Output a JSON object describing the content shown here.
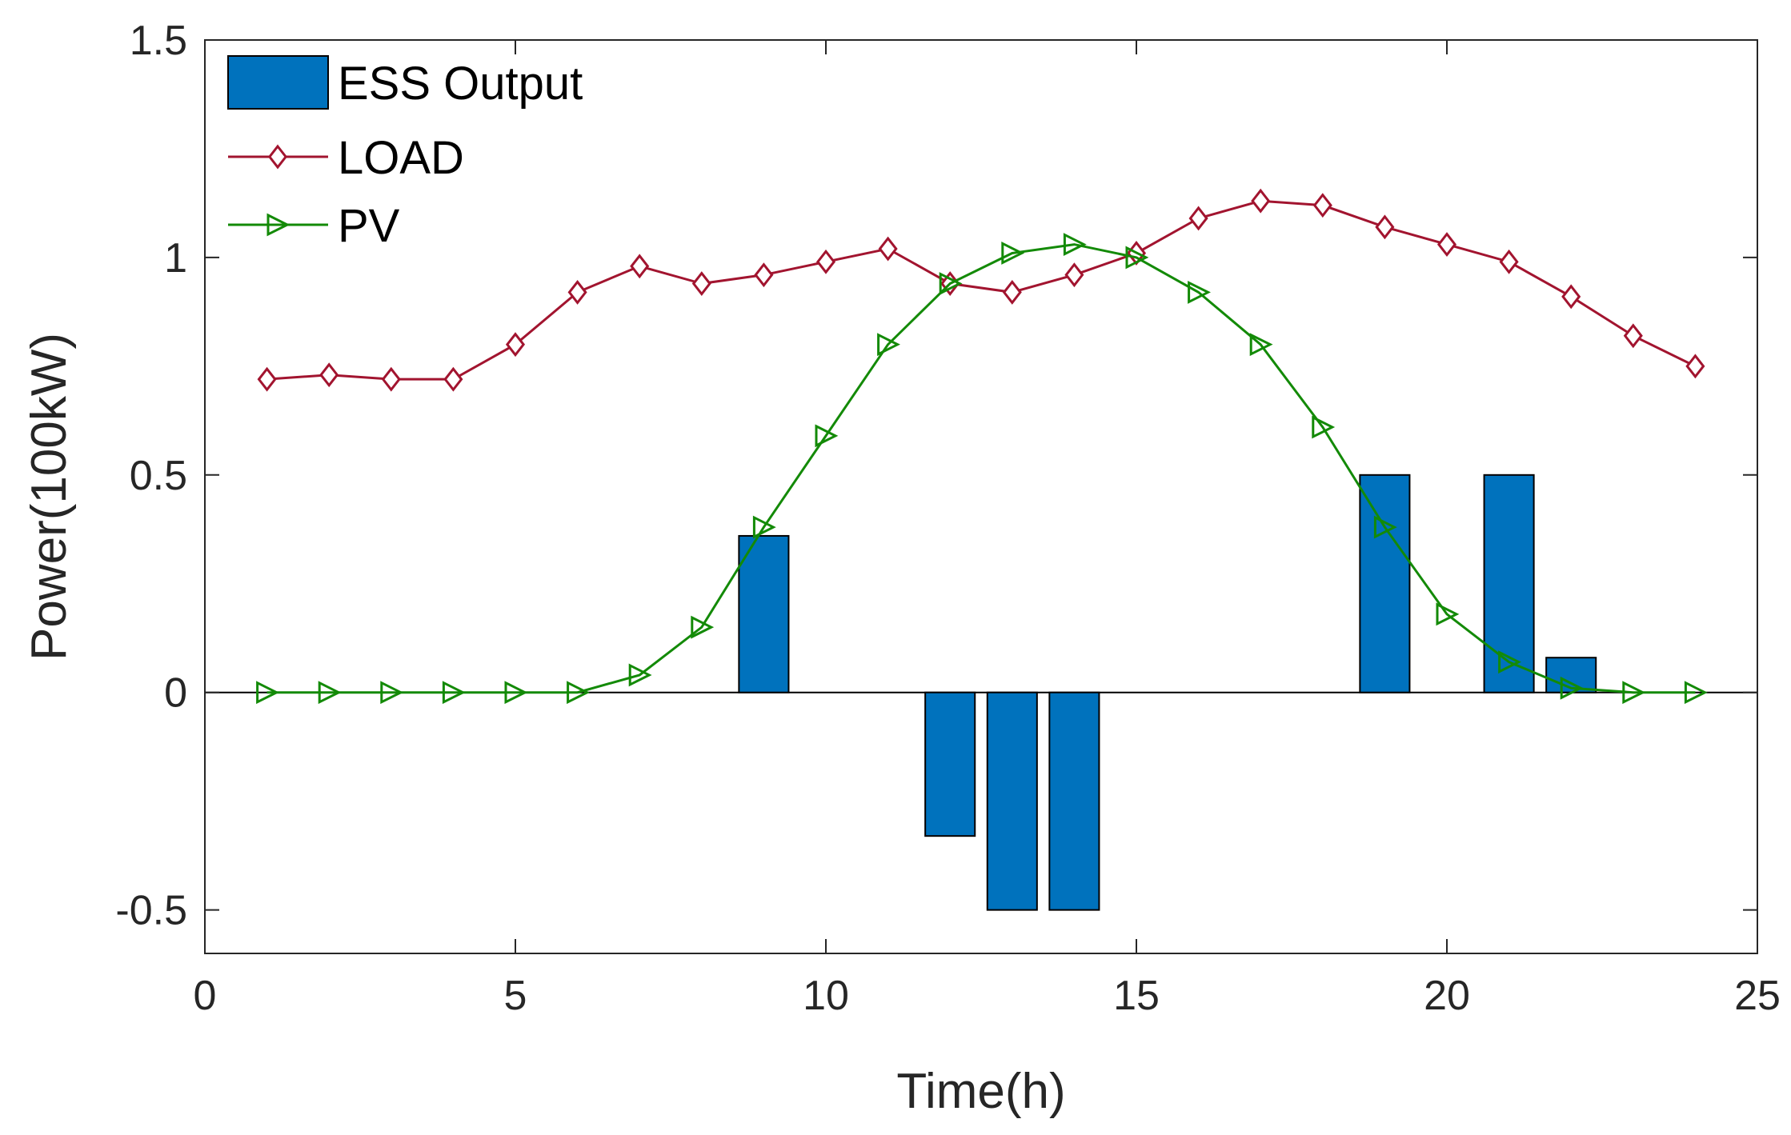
{
  "chart_data": {
    "type": "bar+line",
    "title": "",
    "xlabel": "Time(h)",
    "ylabel": "Power(100kW)",
    "xlim": [
      0,
      25
    ],
    "ylim": [
      -0.6,
      1.5
    ],
    "xticks": [
      0,
      5,
      10,
      15,
      20,
      25
    ],
    "yticks": [
      -0.5,
      0,
      0.5,
      1,
      1.5
    ],
    "xtick_labels": [
      "0",
      "5",
      "10",
      "15",
      "20",
      "25"
    ],
    "ytick_labels": [
      "-0.5",
      "0",
      "0.5",
      "1",
      "1.5"
    ],
    "grid": false,
    "legend_position": "top-left",
    "x": [
      1,
      2,
      3,
      4,
      5,
      6,
      7,
      8,
      9,
      10,
      11,
      12,
      13,
      14,
      15,
      16,
      17,
      18,
      19,
      20,
      21,
      22,
      23,
      24
    ],
    "series": [
      {
        "name": "ESS Output",
        "type": "bar",
        "color": "#0072BD",
        "values": [
          0,
          0,
          0,
          0,
          0,
          0,
          0,
          0,
          0.36,
          0,
          0,
          -0.33,
          -0.5,
          -0.5,
          0,
          0,
          0,
          0,
          0.5,
          0,
          0.5,
          0.08,
          0,
          0
        ]
      },
      {
        "name": "LOAD",
        "type": "line",
        "marker": "diamond",
        "color": "#A2142F",
        "values": [
          0.72,
          0.73,
          0.72,
          0.72,
          0.8,
          0.92,
          0.98,
          0.94,
          0.96,
          0.99,
          1.02,
          0.94,
          0.92,
          0.96,
          1.01,
          1.09,
          1.13,
          1.12,
          1.07,
          1.03,
          0.99,
          0.91,
          0.82,
          0.75
        ]
      },
      {
        "name": "PV",
        "type": "line",
        "marker": "triangle-right",
        "color": "#138A07",
        "values": [
          0,
          0,
          0,
          0,
          0,
          0,
          0.04,
          0.15,
          0.38,
          0.59,
          0.8,
          0.94,
          1.01,
          1.03,
          1.0,
          0.92,
          0.8,
          0.61,
          0.38,
          0.18,
          0.07,
          0.01,
          0,
          0
        ]
      }
    ]
  }
}
